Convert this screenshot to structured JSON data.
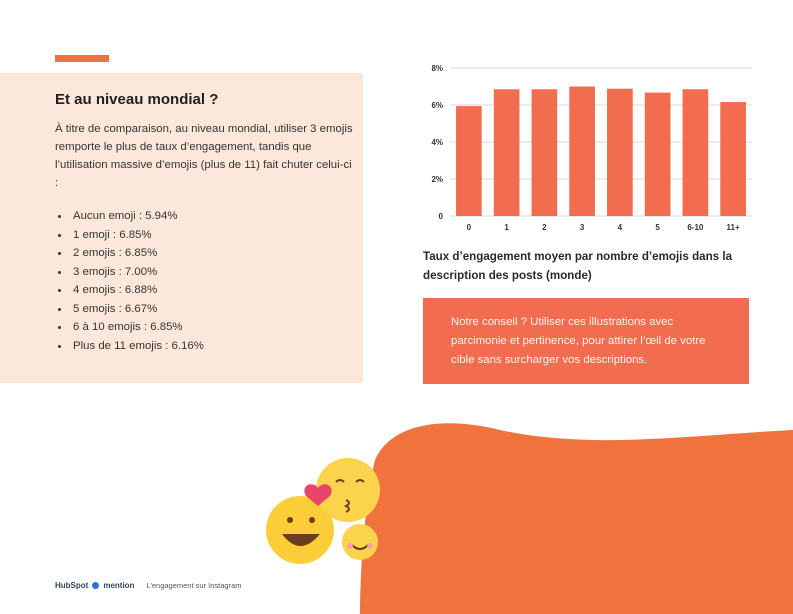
{
  "section": {
    "title": "Et au niveau mondial ?",
    "intro": "À titre de comparaison, au niveau mondial, utiliser 3 emojis remporte le plus de taux d’engagement, tandis que l’utilisation massive d’emojis (plus de 11) fait chuter celui-ci :",
    "items": [
      "Aucun emoji : 5.94%",
      "1 emoji : 6.85%",
      "2 emojis : 6.85%",
      "3 emojis : 7.00%",
      "4 emojis : 6.88%",
      "5 emojis : 6.67%",
      "6 à 10 emojis : 6.85%",
      "Plus de 11 emojis : 6.16%"
    ]
  },
  "chart_data": {
    "type": "bar",
    "categories": [
      "0",
      "1",
      "2",
      "3",
      "4",
      "5",
      "6-10",
      "11+"
    ],
    "values": [
      5.94,
      6.85,
      6.85,
      7.0,
      6.88,
      6.67,
      6.85,
      6.16
    ],
    "ylim": [
      0,
      8
    ],
    "yticks": [
      0,
      2,
      4,
      6,
      8
    ],
    "ytick_labels": [
      "0",
      "2%",
      "4%",
      "6%",
      "8%"
    ],
    "grid": true,
    "bar_color": "#f26c4f",
    "title": "",
    "xlabel": "",
    "ylabel": ""
  },
  "chart_caption": "Taux d’engagement moyen par nombre d’emojis dans la description des posts (monde)",
  "tip": "Notre conseil ? Utiliser ces illustrations avec parcimonie et pertinence, pour attirer l’œil de votre cible sans surcharger vos descriptions.",
  "footer": {
    "brand1": "HubSpot",
    "brand2": "mention",
    "caption": "L’engagement sur Instagram"
  },
  "colors": {
    "accent": "#f0733d",
    "panel": "#fce8da",
    "tip_bg": "#f26c4f"
  }
}
